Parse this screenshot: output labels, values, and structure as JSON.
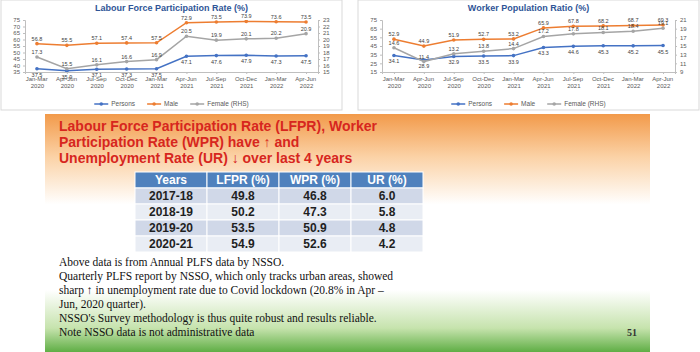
{
  "chart_data": [
    {
      "type": "line",
      "title": "Labour Force Participation Rate (%)",
      "categories": [
        "Jan-Mar 2020",
        "Apr-Jun 2020",
        "Jul-Sep 2020",
        "Oct-Dec 2020",
        "Jan-Mar 2021",
        "Apr-Jun 2021",
        "Jul-Sep 2021",
        "Oct-Dec 2021",
        "Jan-Mar 2022",
        "Apr-Jun 2022"
      ],
      "series": [
        {
          "name": "Persons",
          "color": "#4472c4",
          "values": [
            37.5,
            35.9,
            37.1,
            37.3,
            37.5,
            47.1,
            47.6,
            47.9,
            47.3,
            47.5
          ]
        },
        {
          "name": "Male",
          "color": "#ed7d31",
          "values": [
            56.8,
            55.5,
            57.1,
            57.4,
            57.5,
            72.9,
            73.5,
            73.9,
            73.6,
            73.5
          ]
        },
        {
          "name": "Female (RHS)",
          "color": "#a5a5a5",
          "axis": "y2",
          "values": [
            17.3,
            15.5,
            16.1,
            16.6,
            16.9,
            20.5,
            19.9,
            20.1,
            20.2,
            20.9
          ]
        }
      ],
      "ylim": [
        35,
        75
      ],
      "yticks": [
        35,
        40,
        45,
        50,
        55,
        60,
        65,
        70,
        75
      ],
      "y2lim": [
        15,
        23
      ],
      "y2ticks": [
        15,
        16,
        17,
        18,
        19,
        20,
        21,
        22,
        23
      ],
      "grid": false,
      "data_labels": true,
      "marker": "circle",
      "legend": "bottom"
    },
    {
      "type": "line",
      "title": "Worker Population Ratio (%)",
      "categories": [
        "Jan-Mar 2020",
        "Apr-Jun 2020",
        "Jul-Sep 2020",
        "Oct-Dec 2020",
        "Jan-Mar 2021",
        "Apr-Jun 2021",
        "Jul-Sep 2021",
        "Oct-Dec 2021",
        "Jan-Mar 2022",
        "Apr-Jun 2022"
      ],
      "series": [
        {
          "name": "Persons",
          "color": "#4472c4",
          "values": [
            34.1,
            28.9,
            32.9,
            33.5,
            33.9,
            43.3,
            44.6,
            45.3,
            45.2,
            45.5
          ]
        },
        {
          "name": "Male",
          "color": "#ed7d31",
          "values": [
            52.9,
            44.9,
            51.9,
            52.7,
            53.2,
            65.9,
            67.8,
            68.2,
            68.7,
            69.3
          ]
        },
        {
          "name": "Female (RHS)",
          "color": "#a5a5a5",
          "axis": "y2",
          "values": [
            14.6,
            11.4,
            13.2,
            13.8,
            14.4,
            17.2,
            17.8,
            18.1,
            18.4,
            19.1
          ]
        }
      ],
      "ylim": [
        15,
        75
      ],
      "yticks": [
        15,
        25,
        35,
        45,
        55,
        65,
        75
      ],
      "y2lim": [
        9,
        21
      ],
      "y2ticks": [
        9,
        11,
        13,
        15,
        17,
        19,
        21
      ],
      "grid": false,
      "data_labels": true,
      "marker": "circle",
      "legend": "bottom"
    }
  ],
  "slide": {
    "title_lines": [
      "Labour Force Participation Rate (LFPR), Worker",
      "Participation Rate (WPR) have ↑ and",
      "Unemployment Rate (UR) ↓ over last 4 years"
    ],
    "table": {
      "header": [
        "Years",
        "LFPR (%)",
        "WPR (%)",
        "UR (%)"
      ],
      "rows": [
        [
          "2017-18",
          "49.8",
          "46.8",
          "6.0"
        ],
        [
          "2018-19",
          "50.2",
          "47.3",
          "5.8"
        ],
        [
          "2019-20",
          "53.5",
          "50.9",
          "4.8"
        ],
        [
          "2020-21",
          "54.9",
          "52.6",
          "4.2"
        ]
      ]
    },
    "notes": [
      "Above data is from Annual PLFS data by NSSO.",
      "Quarterly PLFS report by NSSO, which only tracks urban areas, showed",
      "sharp ↑ in unemployment rate due to Covid lockdown (20.8% in Apr –",
      "Jun, 2020 quarter).",
      "NSSO's Survey methodology is thus quite robust and results reliable.",
      "Note NSSO data is not administrative data"
    ],
    "page_number": "51"
  }
}
